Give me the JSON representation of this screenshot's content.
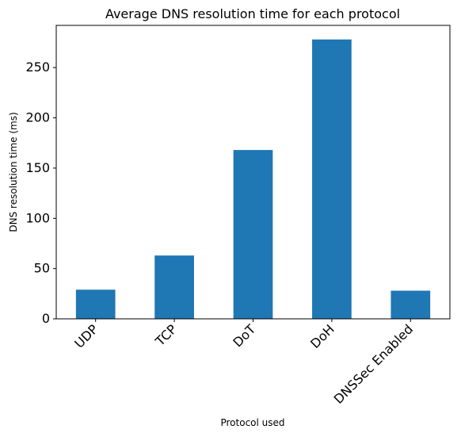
{
  "chart_data": {
    "type": "bar",
    "title": "Average DNS resolution time for each protocol",
    "xlabel": "Protocol used",
    "ylabel": "DNS resolution time (ms)",
    "categories": [
      "UDP",
      "TCP",
      "DoT",
      "DoH",
      "DNSSec Enabled"
    ],
    "values": [
      29,
      63,
      168,
      278,
      28
    ],
    "ylim": [
      0,
      292
    ],
    "yticks": [
      0,
      50,
      100,
      150,
      200,
      250
    ],
    "grid": false,
    "legend": "none",
    "bar_color": "#1f77b4"
  }
}
